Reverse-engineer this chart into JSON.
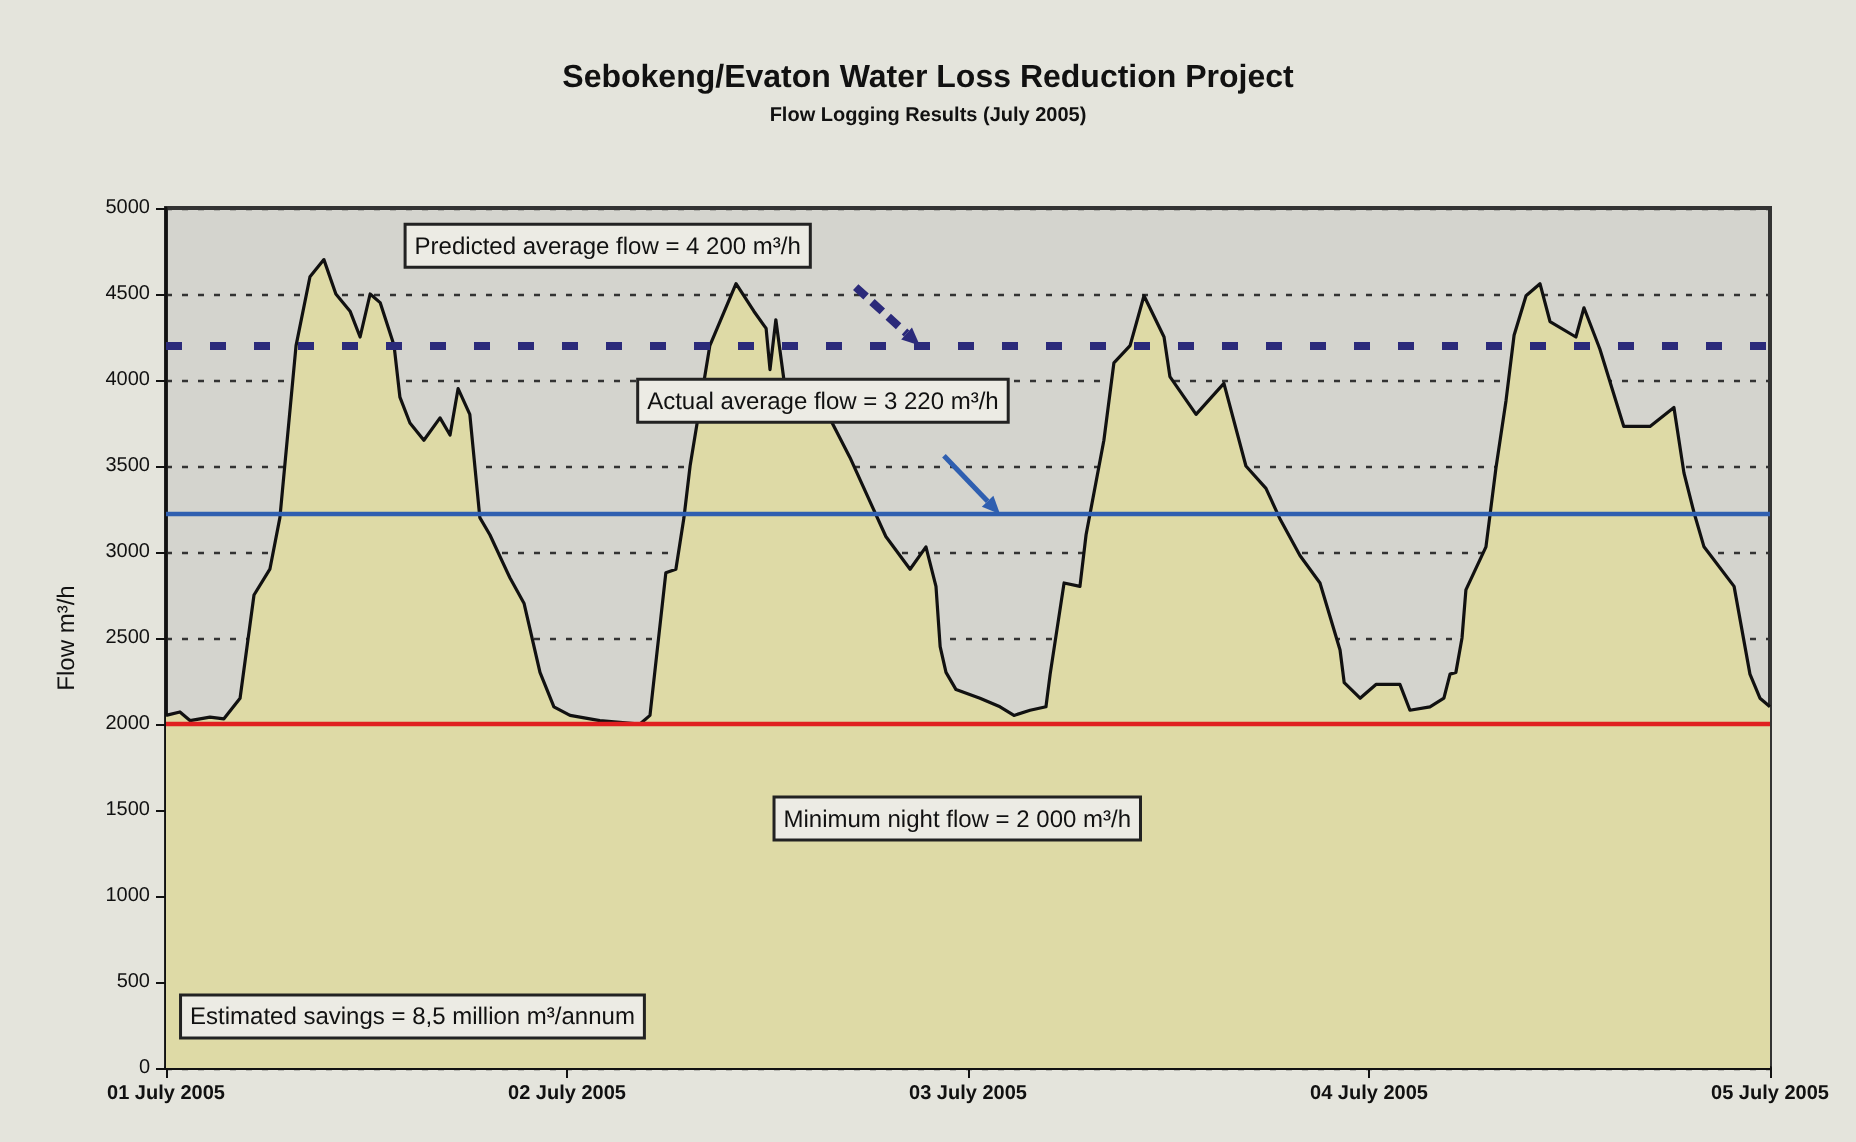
{
  "chart_data": {
    "type": "area",
    "title": "Sebokeng/Evaton Water Loss Reduction Project",
    "subtitle": "Flow Logging Results (July 2005)",
    "ylabel": "Flow m³/h",
    "x": [
      "2005-07-01T00:00",
      "2005-07-01T00:50",
      "2005-07-01T01:26",
      "2005-07-01T02:38",
      "2005-07-01T03:28",
      "2005-07-01T04:26",
      "2005-07-01T05:16",
      "2005-07-01T06:13",
      "2005-07-01T06:49",
      "2005-07-01T07:47",
      "2005-07-01T08:37",
      "2005-07-01T09:27",
      "2005-07-01T10:10",
      "2005-07-01T11:01",
      "2005-07-01T11:37",
      "2005-07-01T12:13",
      "2005-07-01T12:49",
      "2005-07-01T13:39",
      "2005-07-01T14:00",
      "2005-07-01T14:36",
      "2005-07-01T15:26",
      "2005-07-01T16:24",
      "2005-07-01T17:00",
      "2005-07-01T17:29",
      "2005-07-01T18:11",
      "2005-07-01T18:47",
      "2005-07-01T19:23",
      "2005-07-01T20:35",
      "2005-07-01T21:26",
      "2005-07-01T22:23",
      "2005-07-01T23:13",
      "2005-07-02T00:11",
      "2005-07-02T01:58",
      "2005-07-02T04:22",
      "2005-07-02T04:58",
      "2005-07-02T05:55",
      "2005-07-02T06:31",
      "2005-07-02T07:00",
      "2005-07-02T07:22",
      "2005-07-02T08:33",
      "2005-07-02T10:07",
      "2005-07-02T11:11",
      "2005-07-02T11:55",
      "2005-07-02T12:09",
      "2005-07-02T12:30",
      "2005-07-02T12:59",
      "2005-07-02T14:33",
      "2005-07-02T16:56",
      "2005-07-02T19:05",
      "2005-07-02T20:32",
      "2005-07-02T21:29",
      "2005-07-02T22:05",
      "2005-07-02T22:20",
      "2005-07-02T22:41",
      "2005-07-02T23:17",
      "2005-07-03T00:43",
      "2005-07-03T01:55",
      "2005-07-03T02:45",
      "2005-07-03T03:43",
      "2005-07-03T04:40",
      "2005-07-03T04:55",
      "2005-07-03T05:45",
      "2005-07-03T06:42",
      "2005-07-03T07:04",
      "2005-07-03T08:08",
      "2005-07-03T08:44",
      "2005-07-03T09:42",
      "2005-07-03T10:32",
      "2005-07-03T11:44",
      "2005-07-03T12:05",
      "2005-07-03T13:39",
      "2005-07-03T15:19",
      "2005-07-03T16:38",
      "2005-07-03T17:50",
      "2005-07-03T18:41",
      "2005-07-03T19:52",
      "2005-07-03T21:04",
      "2005-07-03T22:16",
      "2005-07-03T22:31",
      "2005-07-03T23:28",
      "2005-07-04T00:25",
      "2005-07-04T01:51",
      "2005-07-04T02:27",
      "2005-07-04T03:39",
      "2005-07-04T04:29",
      "2005-07-04T04:51",
      "2005-07-04T05:12",
      "2005-07-04T05:34",
      "2005-07-04T05:48",
      "2005-07-04T07:00",
      "2005-07-04T07:36",
      "2005-07-04T08:12",
      "2005-07-04T08:41",
      "2005-07-04T09:24",
      "2005-07-04T10:14",
      "2005-07-04T10:50",
      "2005-07-04T12:23",
      "2005-07-04T12:52",
      "2005-07-04T13:49",
      "2005-07-04T15:15",
      "2005-07-04T16:49",
      "2005-07-04T18:15",
      "2005-07-04T18:51",
      "2005-07-04T19:27",
      "2005-07-04T20:03",
      "2005-07-04T21:51",
      "2005-07-04T22:48",
      "2005-07-04T23:24",
      "2005-07-05T00:00"
    ],
    "series": [
      {
        "color": "#dedaa6",
        "values": [
          2050,
          2070,
          2020,
          2040,
          2030,
          2150,
          2750,
          2900,
          3200,
          4200,
          4600,
          4700,
          4500,
          4400,
          4250,
          4500,
          4450,
          4200,
          3900,
          3750,
          3650,
          3780,
          3680,
          3950,
          3800,
          3200,
          3100,
          2850,
          2700,
          2300,
          2100,
          2050,
          2020,
          2000,
          2050,
          2880,
          2900,
          3200,
          3500,
          4200,
          4560,
          4400,
          4300,
          4060,
          4350,
          4000,
          4000,
          3550,
          3090,
          2900,
          3030,
          2800,
          2450,
          2300,
          2200,
          2150,
          2100,
          2050,
          2080,
          2100,
          2290,
          2820,
          2800,
          3100,
          3650,
          4100,
          4200,
          4490,
          4250,
          4020,
          3800,
          3980,
          3500,
          3370,
          3190,
          2980,
          2820,
          2430,
          2240,
          2150,
          2230,
          2230,
          2080,
          2100,
          2150,
          2290,
          2300,
          2500,
          2780,
          3030,
          3490,
          3880,
          4260,
          4490,
          4560,
          4340,
          4250,
          4420,
          4180,
          3730,
          3730,
          3840,
          3460,
          3230,
          3030,
          2800,
          2290,
          2150,
          2100
        ]
      }
    ],
    "xlim": [
      "2005-07-01",
      "2005-07-05"
    ],
    "xticks": [
      {
        "value": "2005-07-01",
        "label": "01 July 2005"
      },
      {
        "value": "2005-07-02",
        "label": "02 July 2005"
      },
      {
        "value": "2005-07-03",
        "label": "03 July 2005"
      },
      {
        "value": "2005-07-04",
        "label": "04 July 2005"
      },
      {
        "value": "2005-07-05",
        "label": "05 July 2005"
      }
    ],
    "ylim": [
      0,
      5000
    ],
    "yticks": [
      0,
      500,
      1000,
      1500,
      2000,
      2500,
      3000,
      3500,
      4000,
      4500,
      5000
    ],
    "ref_lines": [
      {
        "axis": "y",
        "value": 4200,
        "color": "#2b2a7a",
        "line_style": "dashed"
      },
      {
        "axis": "y",
        "value": 3220,
        "color": "#2f5fb0",
        "line_style": "solid"
      },
      {
        "axis": "y",
        "value": 2000,
        "color": "#e02020",
        "line_style": "solid"
      }
    ],
    "annotations": [
      "Predicted average flow = 4 200 m³/h",
      "Actual average flow = 3 220 m³/h",
      "Minimum night flow = 2 000 m³/h",
      "Estimated savings = 8,5 million m³/annum"
    ],
    "grid": "y",
    "marker": "none",
    "line_style": "solid"
  }
}
